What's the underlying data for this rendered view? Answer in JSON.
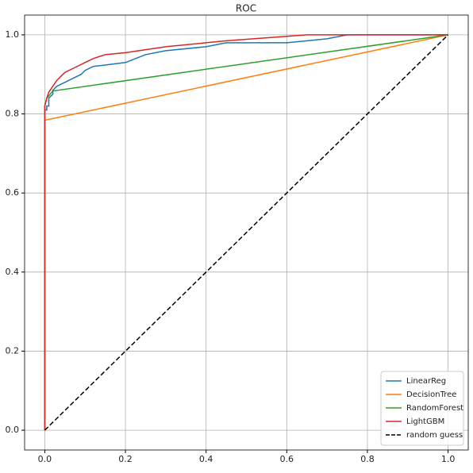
{
  "chart_data": {
    "type": "line",
    "title": "ROC",
    "xlim": [
      -0.05,
      1.05
    ],
    "ylim": [
      -0.05,
      1.05
    ],
    "xticks": [
      {
        "value": 0,
        "label": "0.0"
      },
      0.2,
      0.4,
      0.6,
      0.8,
      {
        "value": 1,
        "label": "1.0"
      }
    ],
    "yticks": [
      {
        "value": 0,
        "label": "0.0"
      },
      0.2,
      0.4,
      0.6,
      0.8,
      {
        "value": 1,
        "label": "1.0"
      }
    ],
    "grid": true,
    "legend": "lower right",
    "series": [
      {
        "name": "LinearReg",
        "color": "#1f77b4",
        "linestyle": "solid",
        "x": [
          0,
          0,
          0.005,
          0.005,
          0.01,
          0.01,
          0.02,
          0.02,
          0.03,
          0.05,
          0.07,
          0.09,
          0.1,
          0.12,
          0.2,
          0.25,
          0.3,
          0.4,
          0.45,
          0.6,
          0.7,
          0.75,
          1.0
        ],
        "values": [
          0,
          0.81,
          0.81,
          0.82,
          0.82,
          0.84,
          0.85,
          0.86,
          0.87,
          0.88,
          0.89,
          0.9,
          0.91,
          0.92,
          0.93,
          0.95,
          0.96,
          0.97,
          0.98,
          0.98,
          0.99,
          1.0,
          1.0
        ]
      },
      {
        "name": "DecisionTree",
        "color": "#ff7f0e",
        "linestyle": "solid",
        "x": [
          0,
          0,
          1
        ],
        "values": [
          0,
          0.784,
          1
        ]
      },
      {
        "name": "RandomForest",
        "color": "#2ca02c",
        "linestyle": "solid",
        "x": [
          0,
          0,
          0.005,
          0.02,
          1
        ],
        "values": [
          0,
          0.82,
          0.84,
          0.858,
          1
        ]
      },
      {
        "name": "LightGBM",
        "color": "#d62728",
        "linestyle": "solid",
        "x": [
          0,
          0,
          0.005,
          0.01,
          0.02,
          0.03,
          0.04,
          0.05,
          0.07,
          0.1,
          0.12,
          0.15,
          0.2,
          0.3,
          0.45,
          0.65,
          1
        ],
        "values": [
          0,
          0.82,
          0.84,
          0.855,
          0.87,
          0.885,
          0.895,
          0.905,
          0.915,
          0.93,
          0.94,
          0.95,
          0.955,
          0.97,
          0.985,
          1.0,
          1.0
        ]
      },
      {
        "name": "random guess",
        "color": "#000000",
        "linestyle": "dashed",
        "x": [
          0,
          1
        ],
        "values": [
          0,
          1
        ]
      }
    ]
  }
}
